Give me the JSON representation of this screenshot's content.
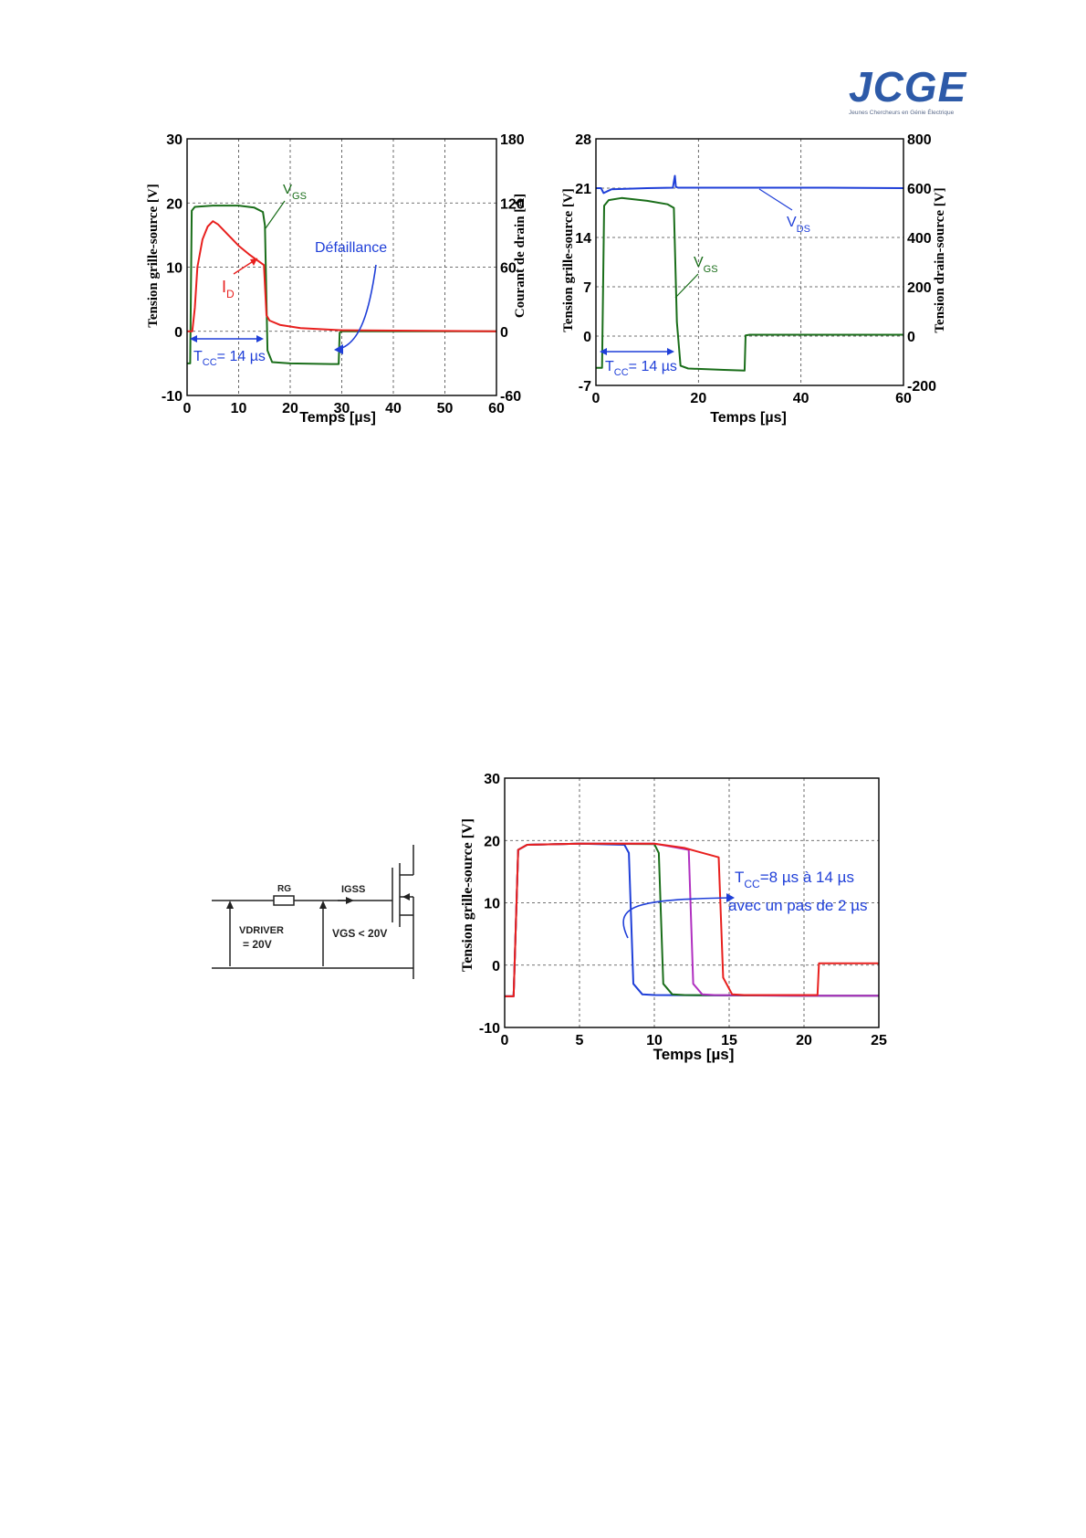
{
  "logo": {
    "name": "JCGE",
    "subtitle": "Jeunes Chercheurs en Génie Électrique"
  },
  "colors": {
    "vgs": "#1a6e1a",
    "id": "#e8201e",
    "vds": "#1f3fd8",
    "annot": "#1f3fd8",
    "purple": "#b030c0"
  },
  "chart_data": [
    {
      "type": "line",
      "xlabel": "Temps [µs]",
      "ylabel": "Tension grille-source [V]",
      "y2label": "Courant de drain [A]",
      "xlim": [
        0,
        60
      ],
      "ylim": [
        -10,
        30
      ],
      "y2lim": [
        -60,
        180
      ],
      "xticks": [
        0,
        10,
        20,
        30,
        40,
        50,
        60
      ],
      "yticks": [
        -10,
        0,
        10,
        20,
        30
      ],
      "y2ticks": [
        -60,
        0,
        60,
        120,
        180
      ],
      "grid": true,
      "series": [
        {
          "name": "V_GS",
          "axis": "left",
          "color": "#1a6e1a",
          "x": [
            0,
            0.6,
            0.9,
            1.5,
            5,
            10,
            13,
            14.7,
            15.1,
            15.6,
            16.5,
            20,
            28,
            29.4,
            29.6,
            30,
            60
          ],
          "y": [
            -5,
            -5,
            18.8,
            19.4,
            19.6,
            19.6,
            19.3,
            18.6,
            16.5,
            -3,
            -4.8,
            -5,
            -5.1,
            -5.1,
            -0.2,
            0,
            0
          ]
        },
        {
          "name": "I_D",
          "axis": "right",
          "color": "#e8201e",
          "x": [
            0,
            1,
            1.5,
            2,
            3,
            4,
            5,
            6,
            8,
            10,
            12,
            14,
            14.9,
            15.4,
            16,
            18,
            22,
            30,
            60
          ],
          "y": [
            0,
            0,
            22,
            60,
            86,
            98,
            103,
            100,
            90,
            80,
            72,
            65,
            62,
            15,
            10,
            6,
            3,
            1,
            0
          ]
        }
      ],
      "annotations": [
        {
          "text": "V",
          "sub": "GS",
          "color": "#1a6e1a"
        },
        {
          "text": "I",
          "sub": "D",
          "color": "#e8201e"
        },
        {
          "text": "Défaillance",
          "color": "#1f3fd8"
        },
        {
          "text": "T",
          "sub": "CC",
          "rest": "= 14 µs",
          "color": "#1f3fd8"
        }
      ]
    },
    {
      "type": "line",
      "xlabel": "Temps [µs]",
      "ylabel": "Tension grille-source [V]",
      "y2label": "Tension drain-source [V]",
      "xlim": [
        0,
        60
      ],
      "ylim": [
        -7,
        28
      ],
      "y2lim": [
        -200,
        800
      ],
      "xticks": [
        0,
        20,
        40,
        60
      ],
      "yticks": [
        -7,
        0,
        7,
        14,
        21,
        28
      ],
      "y2ticks": [
        -200,
        0,
        200,
        400,
        600,
        800
      ],
      "grid": true,
      "series": [
        {
          "name": "V_GS",
          "axis": "left",
          "color": "#1a6e1a",
          "x": [
            0,
            1.2,
            1.6,
            2.5,
            5,
            10,
            14,
            15.2,
            15.8,
            16.5,
            18,
            25,
            29,
            29.2,
            30,
            60
          ],
          "y": [
            -4.5,
            -4.5,
            18.5,
            19.3,
            19.6,
            19.2,
            18.7,
            18.2,
            2,
            -4.2,
            -4.6,
            -4.8,
            -4.9,
            0.1,
            0.2,
            0.2
          ]
        },
        {
          "name": "V_DS",
          "axis": "right",
          "color": "#1f3fd8",
          "x": [
            0,
            1,
            1.5,
            3,
            10,
            15,
            15.4,
            15.6,
            16,
            30,
            45,
            60
          ],
          "y": [
            600,
            600,
            580,
            595,
            600,
            602,
            650,
            605,
            602,
            602,
            602,
            600
          ]
        }
      ],
      "annotations": [
        {
          "text": "V",
          "sub": "DS",
          "color": "#1f3fd8"
        },
        {
          "text": "V",
          "sub": "GS",
          "color": "#1a6e1a"
        },
        {
          "text": "T",
          "sub": "CC",
          "rest": "= 14 µs",
          "color": "#1f3fd8"
        }
      ]
    },
    {
      "type": "line",
      "xlabel": "Temps [µs]",
      "ylabel": "Tension grille-source [V]",
      "xlim": [
        0,
        25
      ],
      "ylim": [
        -10,
        30
      ],
      "xticks": [
        0,
        5,
        10,
        15,
        20,
        25
      ],
      "yticks": [
        -10,
        0,
        10,
        20,
        30
      ],
      "grid": true,
      "series": [
        {
          "name": "",
          "color": "#1f3fd8",
          "x": [
            0,
            0.6,
            0.9,
            1.5,
            5,
            8,
            8.3,
            8.6,
            9.2,
            10,
            20,
            25
          ],
          "y": [
            -5,
            -5,
            18.5,
            19.3,
            19.5,
            19.3,
            18,
            -3,
            -4.7,
            -4.8,
            -4.9,
            -4.9
          ]
        },
        {
          "name": "",
          "color": "#1a6e1a",
          "x": [
            0,
            0.6,
            0.9,
            1.5,
            5,
            10,
            10.3,
            10.6,
            11.2,
            12,
            20,
            25
          ],
          "y": [
            -5,
            -5,
            18.5,
            19.3,
            19.5,
            19.4,
            18,
            -3,
            -4.7,
            -4.8,
            -4.9,
            -4.9
          ]
        },
        {
          "name": "",
          "color": "#b030c0",
          "x": [
            0,
            0.6,
            0.9,
            1.5,
            5,
            10,
            12.3,
            12.6,
            13.2,
            14,
            20,
            25
          ],
          "y": [
            -5,
            -5,
            18.5,
            19.3,
            19.5,
            19.5,
            18.5,
            -3,
            -4.7,
            -4.8,
            -4.9,
            -4.9
          ]
        },
        {
          "name": "",
          "color": "#e8201e",
          "x": [
            0,
            0.6,
            0.9,
            1.5,
            5,
            10,
            12,
            14.3,
            14.6,
            15.2,
            16,
            20.9,
            21,
            25
          ],
          "y": [
            -5,
            -5,
            18.5,
            19.3,
            19.5,
            19.5,
            18.8,
            17.3,
            -2,
            -4.7,
            -4.8,
            -4.8,
            0.3,
            0.3
          ]
        }
      ],
      "annotations": [
        {
          "text": "T",
          "sub": "CC",
          "rest": "=8 µs à 14 µs",
          "color": "#1f3fd8"
        },
        {
          "text": "avec un pas de 2 µs",
          "color": "#1f3fd8"
        }
      ]
    }
  ],
  "circuit": {
    "rg": "RG",
    "igss": "IGSS",
    "vdriver": "VDRIVER",
    "vdriver_value": "= 20V",
    "vgs": "VGS < 20V"
  }
}
